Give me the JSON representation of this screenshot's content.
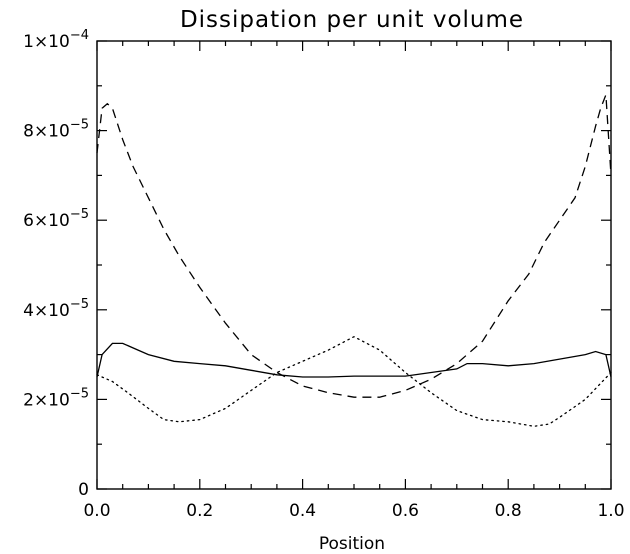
{
  "chart_data": {
    "type": "line",
    "title": "Dissipation per unit volume",
    "xlabel": "Position",
    "ylabel": "",
    "xlim": [
      0,
      1
    ],
    "ylim": [
      0,
      0.0001
    ],
    "grid": false,
    "x_ticks": [
      {
        "value": 0.0,
        "label": "0.0"
      },
      {
        "value": 0.2,
        "label": "0.2"
      },
      {
        "value": 0.4,
        "label": "0.4"
      },
      {
        "value": 0.6,
        "label": "0.6"
      },
      {
        "value": 0.8,
        "label": "0.8"
      },
      {
        "value": 1.0,
        "label": "1.0"
      }
    ],
    "y_ticks": [
      {
        "value": 0,
        "base": "0",
        "exp": ""
      },
      {
        "value": 2e-05,
        "base": "2×10",
        "exp": "−5"
      },
      {
        "value": 4e-05,
        "base": "4×10",
        "exp": "−5"
      },
      {
        "value": 6e-05,
        "base": "6×10",
        "exp": "−5"
      },
      {
        "value": 8e-05,
        "base": "8×10",
        "exp": "−5"
      },
      {
        "value": 0.0001,
        "base": "1×10",
        "exp": "−4"
      }
    ],
    "series": [
      {
        "style": "solid",
        "x": [
          0.0,
          0.01,
          0.03,
          0.05,
          0.08,
          0.1,
          0.15,
          0.2,
          0.25,
          0.3,
          0.35,
          0.4,
          0.45,
          0.5,
          0.55,
          0.6,
          0.65,
          0.7,
          0.72,
          0.75,
          0.8,
          0.85,
          0.9,
          0.95,
          0.97,
          0.99,
          1.0
        ],
        "y": [
          2.5e-05,
          3e-05,
          3.25e-05,
          3.25e-05,
          3.1e-05,
          3e-05,
          2.85e-05,
          2.8e-05,
          2.75e-05,
          2.65e-05,
          2.55e-05,
          2.5e-05,
          2.5e-05,
          2.52e-05,
          2.52e-05,
          2.52e-05,
          2.6e-05,
          2.68e-05,
          2.8e-05,
          2.8e-05,
          2.75e-05,
          2.8e-05,
          2.9e-05,
          3e-05,
          3.07e-05,
          3e-05,
          2.5e-05
        ]
      },
      {
        "style": "dashed",
        "x": [
          0.0,
          0.01,
          0.02,
          0.03,
          0.05,
          0.07,
          0.1,
          0.13,
          0.16,
          0.2,
          0.25,
          0.3,
          0.35,
          0.4,
          0.45,
          0.5,
          0.55,
          0.6,
          0.65,
          0.7,
          0.75,
          0.8,
          0.84,
          0.87,
          0.9,
          0.93,
          0.95,
          0.97,
          0.98,
          0.99,
          1.0
        ],
        "y": [
          7.5e-05,
          8.5e-05,
          8.6e-05,
          8.5e-05,
          7.8e-05,
          7.2e-05,
          6.5e-05,
          5.8e-05,
          5.2e-05,
          4.5e-05,
          3.7e-05,
          3e-05,
          2.6e-05,
          2.3e-05,
          2.15e-05,
          2.05e-05,
          2.05e-05,
          2.2e-05,
          2.45e-05,
          2.8e-05,
          3.3e-05,
          4.2e-05,
          4.8e-05,
          5.5e-05,
          6e-05,
          6.5e-05,
          7.2e-05,
          8.1e-05,
          8.5e-05,
          8.8e-05,
          7e-05
        ]
      },
      {
        "style": "dotted",
        "x": [
          0.0,
          0.03,
          0.06,
          0.1,
          0.13,
          0.16,
          0.2,
          0.25,
          0.3,
          0.35,
          0.4,
          0.45,
          0.5,
          0.55,
          0.6,
          0.65,
          0.7,
          0.75,
          0.8,
          0.85,
          0.88,
          0.9,
          0.95,
          1.0
        ],
        "y": [
          2.55e-05,
          2.4e-05,
          2.15e-05,
          1.8e-05,
          1.55e-05,
          1.5e-05,
          1.55e-05,
          1.8e-05,
          2.2e-05,
          2.6e-05,
          2.85e-05,
          3.1e-05,
          3.4e-05,
          3.1e-05,
          2.6e-05,
          2.15e-05,
          1.75e-05,
          1.55e-05,
          1.5e-05,
          1.4e-05,
          1.45e-05,
          1.6e-05,
          2e-05,
          2.6e-05
        ]
      }
    ]
  }
}
